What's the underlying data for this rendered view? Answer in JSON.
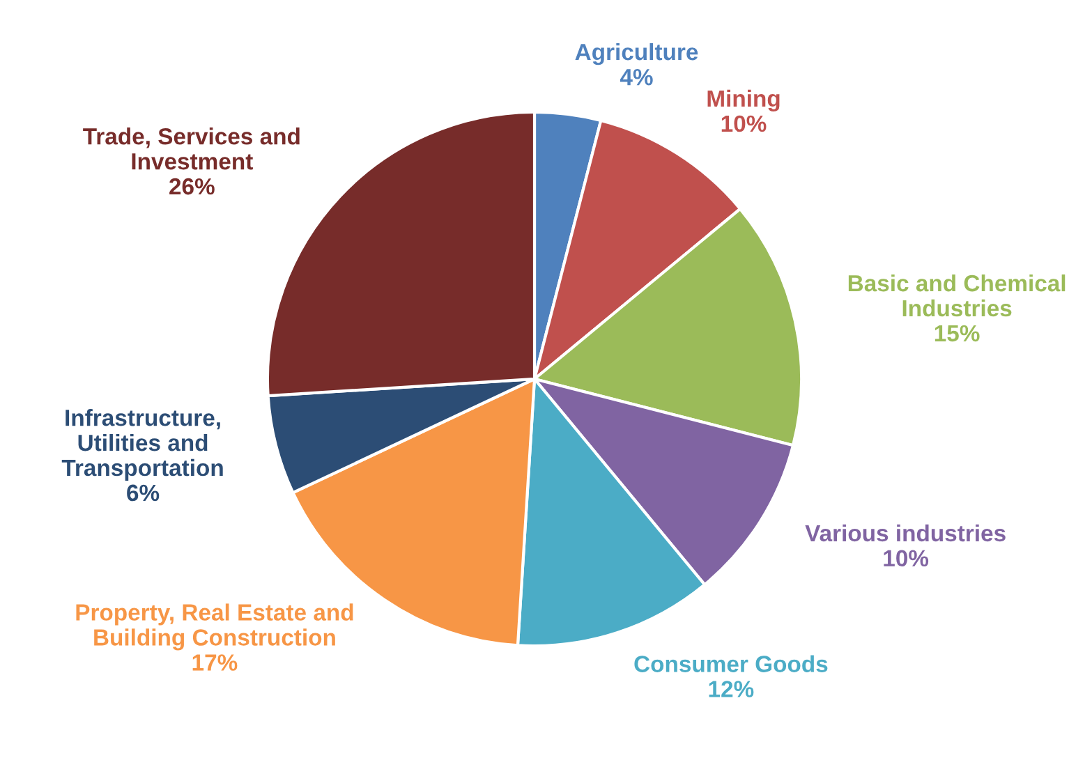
{
  "chart_data": {
    "type": "pie",
    "categories": [
      "Agriculture",
      "Mining",
      "Basic and Chemical Industries",
      "Various industries",
      "Consumer Goods",
      "Property, Real Estate and Building Construction",
      "Infrastructure, Utilities and Transportation",
      "Trade, Services and Investment"
    ],
    "values": [
      4,
      10,
      15,
      10,
      12,
      17,
      6,
      26
    ],
    "value_labels": [
      "4%",
      "10%",
      "15%",
      "10%",
      "12%",
      "17%",
      "6%",
      "26%"
    ],
    "colors": [
      "#4f81bd",
      "#c0504d",
      "#9bbb59",
      "#8064a2",
      "#4bacc6",
      "#f79646",
      "#2c4d75",
      "#772c2a"
    ]
  }
}
